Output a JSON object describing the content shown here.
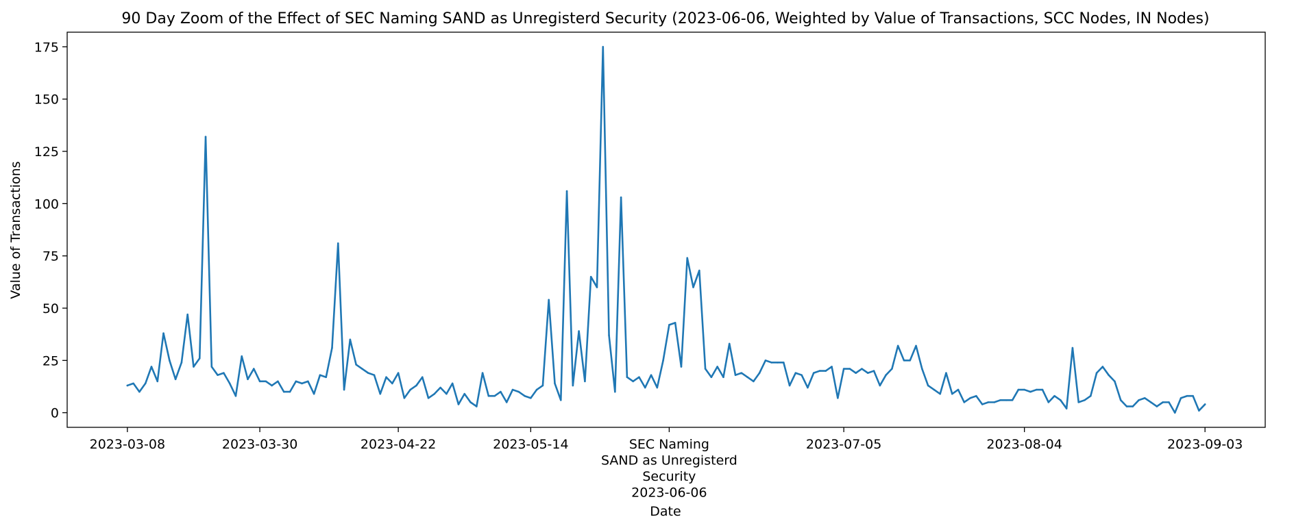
{
  "chart_data": {
    "type": "line",
    "title": "90 Day Zoom of the Effect of SEC Naming SAND as Unregisterd Security (2023-06-06, Weighted by Value of Transactions, SCC Nodes, IN Nodes)",
    "xlabel": "Date",
    "ylabel": "Value of Transactions",
    "ylim": [
      -7,
      182
    ],
    "xlim": [
      "2023-02-26",
      "2023-09-13"
    ],
    "grid": false,
    "legend": "none",
    "x_ticks": [
      "2023-03-08",
      "2023-03-30",
      "2023-04-22",
      "2023-05-14",
      "2023-07-05",
      "2023-08-04",
      "2023-09-03"
    ],
    "event_tick": {
      "date": "2023-06-06",
      "lines": [
        "SEC Naming",
        "SAND as Unregisterd",
        "Security",
        "2023-06-06"
      ]
    },
    "y_ticks": [
      0,
      25,
      50,
      75,
      100,
      125,
      150,
      175
    ],
    "series": [
      {
        "color": "#1f77b4",
        "start": "2023-03-08",
        "values": [
          13,
          14,
          10,
          14,
          22,
          15,
          38,
          25,
          16,
          24,
          47,
          22,
          26,
          132,
          22,
          18,
          19,
          14,
          8,
          27,
          16,
          21,
          15,
          15,
          13,
          15,
          10,
          10,
          15,
          14,
          15,
          9,
          18,
          17,
          31,
          81,
          11,
          35,
          23,
          21,
          19,
          18,
          9,
          17,
          14,
          19,
          7,
          11,
          13,
          17,
          7,
          9,
          12,
          9,
          14,
          4,
          9,
          5,
          3,
          19,
          8,
          8,
          10,
          5,
          11,
          10,
          8,
          7,
          11,
          13,
          54,
          14,
          6,
          106,
          13,
          39,
          15,
          65,
          60,
          175,
          37,
          10,
          103,
          17,
          15,
          17,
          12,
          18,
          12,
          25,
          42,
          43,
          22,
          74,
          60,
          68,
          21,
          17,
          22,
          17,
          33,
          18,
          19,
          17,
          15,
          19,
          25,
          24,
          24,
          24,
          13,
          19,
          18,
          12,
          19,
          20,
          20,
          22,
          7,
          21,
          21,
          19,
          21,
          19,
          20,
          13,
          18,
          21,
          32,
          25,
          25,
          32,
          21,
          13,
          11,
          9,
          19,
          9,
          11,
          5,
          7,
          8,
          4,
          5,
          5,
          6,
          6,
          6,
          11,
          11,
          10,
          11,
          11,
          5,
          8,
          6,
          2,
          31,
          5,
          6,
          8,
          19,
          22,
          18,
          15,
          6,
          3,
          3,
          6,
          7,
          5,
          3,
          5,
          5,
          0,
          7,
          8,
          8,
          1,
          4
        ]
      }
    ]
  }
}
